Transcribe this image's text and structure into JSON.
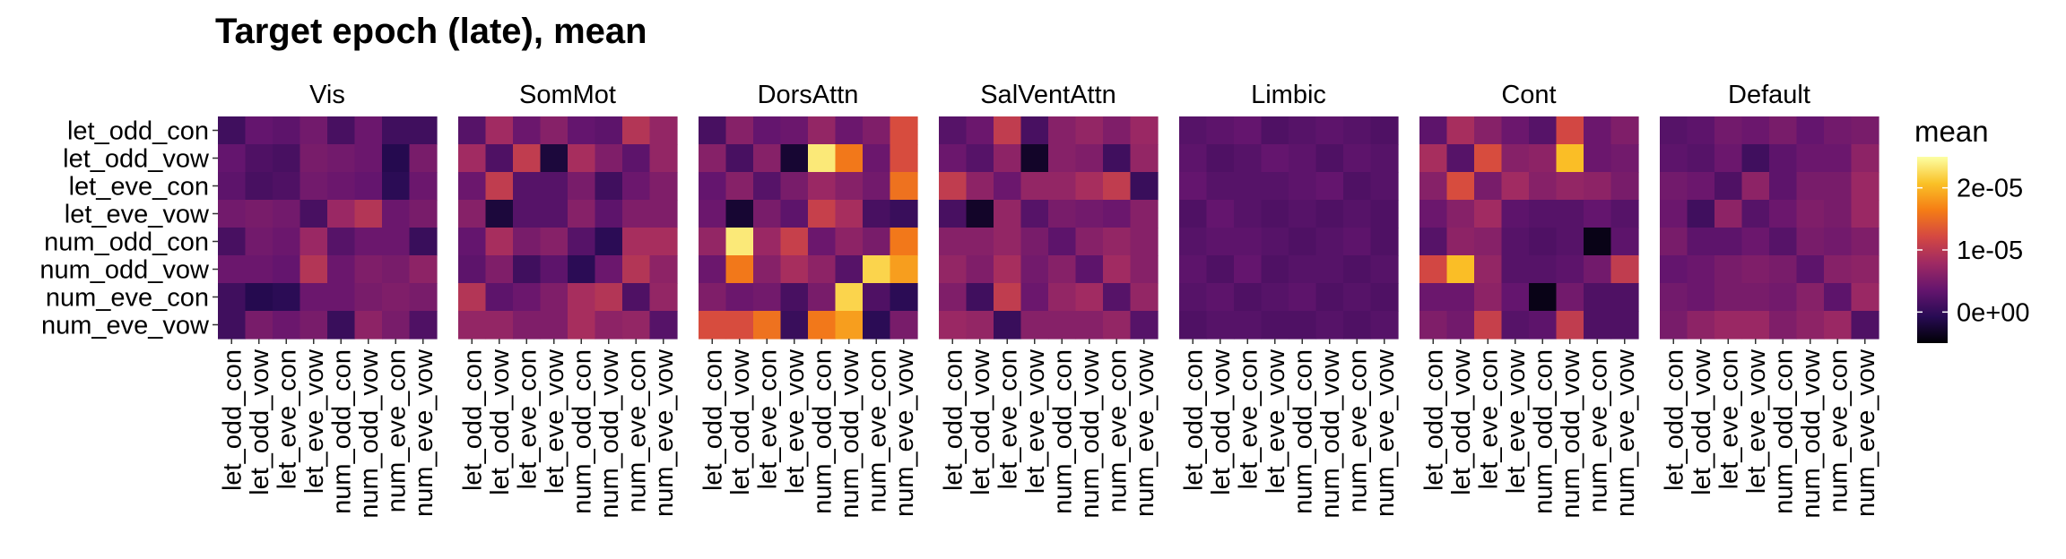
{
  "chart_data": {
    "type": "heatmap",
    "title": "Target epoch (late), mean",
    "xlabel": "",
    "ylabel": "",
    "row_labels": [
      "let_odd_con",
      "let_odd_vow",
      "let_eve_con",
      "let_eve_vow",
      "num_odd_con",
      "num_odd_vow",
      "num_eve_con",
      "num_eve_vow"
    ],
    "col_labels": [
      "let_odd_con",
      "let_odd_vow",
      "let_eve_con",
      "let_eve_vow",
      "num_odd_con",
      "num_odd_vow",
      "num_eve_con",
      "num_eve_vow"
    ],
    "colorscale": "inferno",
    "legend": {
      "title": "mean",
      "range": [
        -5e-06,
        2.5e-05
      ],
      "ticks": [
        {
          "value": 2e-05,
          "label": "2e-05"
        },
        {
          "value": 1e-05,
          "label": "1e-05"
        },
        {
          "value": 0,
          "label": "0e+00"
        }
      ],
      "position": "right"
    },
    "panels": [
      {
        "name": "Vis",
        "values": [
          [
            1e-06,
            3.5e-06,
            3e-06,
            4.5e-06,
            1.5e-06,
            4e-06,
            1e-06,
            1e-06
          ],
          [
            3.5e-06,
            2e-06,
            1.5e-06,
            5e-06,
            4.5e-06,
            4e-06,
            -1e-06,
            5e-06
          ],
          [
            3e-06,
            1.5e-06,
            2e-06,
            4.5e-06,
            4e-06,
            3.5e-06,
            -5e-07,
            4e-06
          ],
          [
            4.5e-06,
            5e-06,
            4.5e-06,
            1.5e-06,
            7.5e-06,
            9.5e-06,
            4e-06,
            5e-06
          ],
          [
            1.5e-06,
            4.5e-06,
            4e-06,
            7.5e-06,
            2.5e-06,
            4e-06,
            4e-06,
            5e-07
          ],
          [
            4e-06,
            4e-06,
            3.5e-06,
            9.5e-06,
            4e-06,
            5.5e-06,
            5e-06,
            6.5e-06
          ],
          [
            1e-06,
            -1e-06,
            -5e-07,
            4e-06,
            4e-06,
            5e-06,
            5.5e-06,
            5e-06
          ],
          [
            1e-06,
            5e-06,
            4e-06,
            5e-06,
            5e-07,
            6.5e-06,
            5e-06,
            2e-06
          ]
        ]
      },
      {
        "name": "SomMot",
        "values": [
          [
            2.5e-06,
            8e-06,
            4e-06,
            6e-06,
            3.5e-06,
            3e-06,
            9.5e-06,
            7e-06
          ],
          [
            8e-06,
            2e-06,
            1.05e-05,
            -2e-06,
            8.5e-06,
            5.5e-06,
            3e-06,
            7e-06
          ],
          [
            4e-06,
            1.05e-05,
            2.5e-06,
            2.5e-06,
            5e-06,
            1e-06,
            4e-06,
            5.5e-06
          ],
          [
            6e-06,
            -2e-06,
            2.5e-06,
            2.5e-06,
            6e-06,
            3e-06,
            5.5e-06,
            5.5e-06
          ],
          [
            3.5e-06,
            8.5e-06,
            5e-06,
            6e-06,
            2.5e-06,
            -5e-07,
            8.5e-06,
            8.5e-06
          ],
          [
            3e-06,
            5.5e-06,
            1e-06,
            3e-06,
            -5e-07,
            4e-06,
            9.5e-06,
            6.5e-06
          ],
          [
            9.5e-06,
            3e-06,
            4e-06,
            5.5e-06,
            8.5e-06,
            9.5e-06,
            2e-06,
            7e-06
          ],
          [
            7e-06,
            7e-06,
            5.5e-06,
            5.5e-06,
            8.5e-06,
            6.5e-06,
            7e-06,
            2.5e-06
          ]
        ]
      },
      {
        "name": "DorsAttn",
        "values": [
          [
            1.5e-06,
            6e-06,
            3.5e-06,
            4e-06,
            7e-06,
            4e-06,
            5.5e-06,
            1.25e-05
          ],
          [
            6e-06,
            1.5e-06,
            6e-06,
            -2.5e-06,
            2.35e-05,
            1.6e-05,
            4e-06,
            1.25e-05
          ],
          [
            3.5e-06,
            6e-06,
            2.5e-06,
            5e-06,
            7.5e-06,
            6e-06,
            4.5e-06,
            1.55e-05
          ],
          [
            4e-06,
            -2.5e-06,
            5e-06,
            3e-06,
            1.1e-05,
            8.5e-06,
            1.5e-06,
            5e-07
          ],
          [
            7e-06,
            2.35e-05,
            7.5e-06,
            1.1e-05,
            4e-06,
            6.5e-06,
            5e-06,
            1.6e-05
          ],
          [
            4e-06,
            1.6e-05,
            6e-06,
            8.5e-06,
            6.5e-06,
            2.5e-06,
            2.2e-05,
            1.85e-05
          ],
          [
            5.5e-06,
            4e-06,
            4.5e-06,
            1.5e-06,
            5e-06,
            2.2e-05,
            2e-06,
            -5e-07
          ],
          [
            1.25e-05,
            1.25e-05,
            1.55e-05,
            5e-07,
            1.6e-05,
            1.85e-05,
            -5e-07,
            5e-06
          ]
        ]
      },
      {
        "name": "SalVentAttn",
        "values": [
          [
            2.5e-06,
            4e-06,
            1.05e-05,
            1.5e-06,
            6e-06,
            7e-06,
            5.5e-06,
            7.5e-06
          ],
          [
            4e-06,
            2.5e-06,
            6.5e-06,
            -3e-06,
            6e-06,
            5.5e-06,
            1e-06,
            7e-06
          ],
          [
            1.05e-05,
            6.5e-06,
            4e-06,
            7e-06,
            7e-06,
            8.5e-06,
            1.05e-05,
            5e-07
          ],
          [
            1.5e-06,
            -3e-06,
            7e-06,
            2.5e-06,
            5e-06,
            4.5e-06,
            4e-06,
            6e-06
          ],
          [
            6e-06,
            6e-06,
            7e-06,
            5e-06,
            3e-06,
            6e-06,
            7e-06,
            6e-06
          ],
          [
            7e-06,
            5.5e-06,
            8.5e-06,
            4.5e-06,
            6e-06,
            3e-06,
            8e-06,
            6e-06
          ],
          [
            5.5e-06,
            1e-06,
            1.05e-05,
            4e-06,
            7e-06,
            8e-06,
            2.5e-06,
            7e-06
          ],
          [
            7.5e-06,
            7e-06,
            5e-07,
            6e-06,
            6e-06,
            6e-06,
            7e-06,
            2.5e-06
          ]
        ]
      },
      {
        "name": "Limbic",
        "values": [
          [
            2.5e-06,
            3e-06,
            3.5e-06,
            2e-06,
            2.5e-06,
            3e-06,
            2.5e-06,
            2e-06
          ],
          [
            3e-06,
            2e-06,
            2.5e-06,
            3.5e-06,
            3e-06,
            2e-06,
            3e-06,
            2.5e-06
          ],
          [
            3.5e-06,
            2.5e-06,
            2.5e-06,
            2.5e-06,
            3e-06,
            3.5e-06,
            2e-06,
            2.5e-06
          ],
          [
            2e-06,
            3.5e-06,
            2.5e-06,
            2e-06,
            2.5e-06,
            2e-06,
            2.5e-06,
            2e-06
          ],
          [
            2.5e-06,
            3e-06,
            3e-06,
            2.5e-06,
            2e-06,
            2.5e-06,
            3e-06,
            2e-06
          ],
          [
            3e-06,
            2e-06,
            3.5e-06,
            2e-06,
            2.5e-06,
            2.5e-06,
            2e-06,
            2.5e-06
          ],
          [
            2.5e-06,
            3e-06,
            2e-06,
            2.5e-06,
            3e-06,
            2e-06,
            2.5e-06,
            2e-06
          ],
          [
            2e-06,
            2.5e-06,
            2.5e-06,
            2e-06,
            2e-06,
            2.5e-06,
            2e-06,
            2.5e-06
          ]
        ]
      },
      {
        "name": "Cont",
        "values": [
          [
            3e-06,
            8.5e-06,
            6e-06,
            4e-06,
            2.5e-06,
            1.2e-05,
            4e-06,
            5.5e-06
          ],
          [
            8.5e-06,
            2.5e-06,
            1.25e-05,
            6e-06,
            6.5e-06,
            2.05e-05,
            4e-06,
            4.5e-06
          ],
          [
            6e-06,
            1.25e-05,
            5e-06,
            8e-06,
            6e-06,
            7e-06,
            6.5e-06,
            5e-06
          ],
          [
            4e-06,
            6e-06,
            8e-06,
            3e-06,
            2.5e-06,
            2.5e-06,
            3.5e-06,
            2.5e-06
          ],
          [
            2.5e-06,
            6.5e-06,
            6e-06,
            2.5e-06,
            2e-06,
            2.5e-06,
            -4e-06,
            3e-06
          ],
          [
            1.2e-05,
            2.05e-05,
            7e-06,
            2.5e-06,
            2.5e-06,
            3e-06,
            4.5e-06,
            1.05e-05
          ],
          [
            4e-06,
            4e-06,
            6.5e-06,
            3.5e-06,
            -4e-06,
            4.5e-06,
            2e-06,
            2e-06
          ],
          [
            5.5e-06,
            4.5e-06,
            1.1e-05,
            2.5e-06,
            3e-06,
            1.05e-05,
            2e-06,
            2e-06
          ]
        ]
      },
      {
        "name": "Default",
        "values": [
          [
            2.5e-06,
            3e-06,
            4.5e-06,
            4e-06,
            5e-06,
            3.5e-06,
            4.5e-06,
            5e-06
          ],
          [
            3e-06,
            2.5e-06,
            4e-06,
            1e-06,
            3e-06,
            4e-06,
            4e-06,
            6.5e-06
          ],
          [
            4.5e-06,
            4e-06,
            2e-06,
            6.5e-06,
            3e-06,
            5e-06,
            5e-06,
            7.5e-06
          ],
          [
            4e-06,
            1e-06,
            6.5e-06,
            2.5e-06,
            4e-06,
            5.5e-06,
            5e-06,
            7.5e-06
          ],
          [
            5e-06,
            3e-06,
            3e-06,
            4e-06,
            2.5e-06,
            5e-06,
            4.5e-06,
            5.5e-06
          ],
          [
            3.5e-06,
            4e-06,
            5e-06,
            5.5e-06,
            5e-06,
            3e-06,
            6e-06,
            6.5e-06
          ],
          [
            4.5e-06,
            4e-06,
            5e-06,
            5e-06,
            4.5e-06,
            6e-06,
            3e-06,
            7.5e-06
          ],
          [
            5e-06,
            6.5e-06,
            7.5e-06,
            7.5e-06,
            5.5e-06,
            6.5e-06,
            7.5e-06,
            2e-06
          ]
        ]
      }
    ]
  }
}
